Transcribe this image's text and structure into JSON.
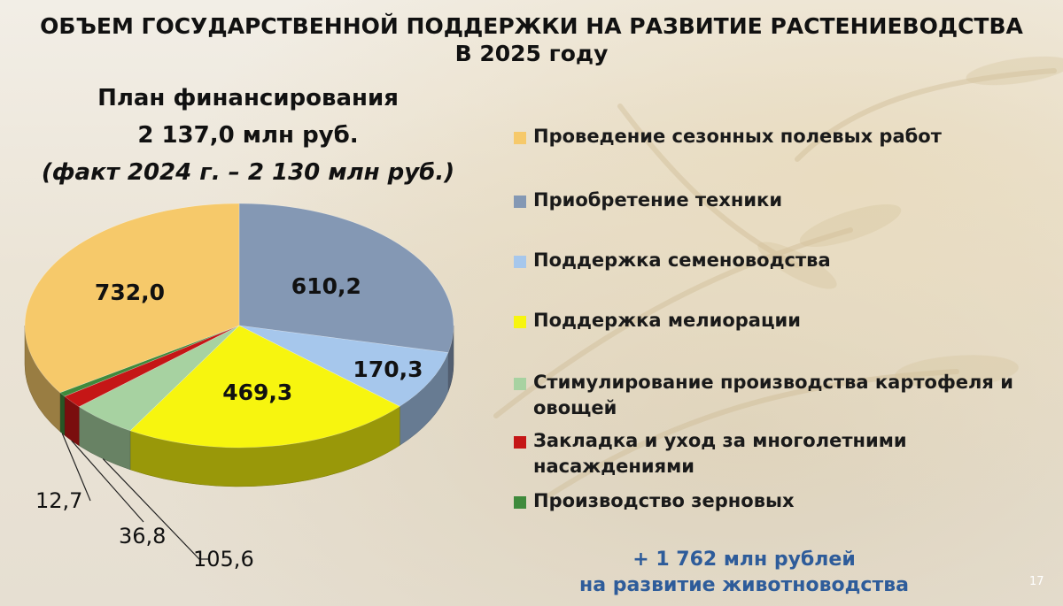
{
  "header": {
    "title_line1": "ОБЪЕМ ГОСУДАРСТВЕННОЙ ПОДДЕРЖКИ НА РАЗВИТИЕ РАСТЕНИЕВОДСТВА",
    "title_line2": "В 2025 году"
  },
  "plan": {
    "line1": "План финансирования",
    "line2": "2 137,0 млн руб.",
    "line3": "(факт 2024 г. – 2 130 млн руб.)"
  },
  "chart_data": {
    "type": "pie",
    "title": "",
    "labels": [
      "Проведение сезонных полевых работ",
      "Приобретение техники",
      "Поддержка семеноводства",
      "Поддержка мелиорации",
      "Стимулирование производства картофеля и овощей",
      "Закладка и уход за многолетними насаждениями",
      "Производство зерновых"
    ],
    "values": [
      732.0,
      610.2,
      170.3,
      469.3,
      105.6,
      36.8,
      12.7
    ],
    "value_labels": [
      "732,0",
      "610,2",
      "170,3",
      "469,3",
      "105,6",
      "36,8",
      "12,7"
    ],
    "colors": [
      "#f6c96a",
      "#8498b4",
      "#a6c7ec",
      "#f7f50f",
      "#a7d2a1",
      "#c51616",
      "#3f8a3c"
    ],
    "legend_position": "right",
    "style": "3d"
  },
  "footer": {
    "line1": "+ 1 762 млн рублей",
    "line2": "на развитие животноводства"
  },
  "page_number": "17"
}
